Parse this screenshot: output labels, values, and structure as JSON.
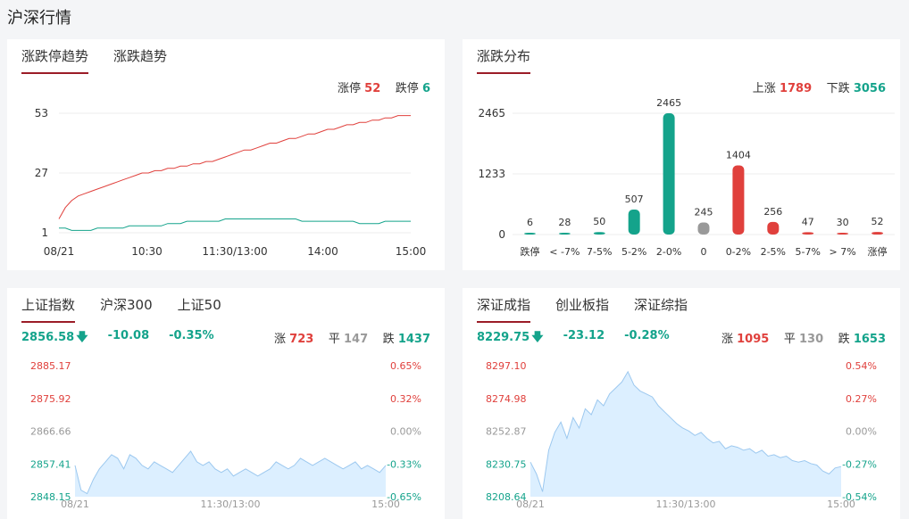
{
  "page_title": "沪深行情",
  "colors": {
    "red": "#e0403c",
    "green": "#14a38b",
    "gray": "#999999",
    "accent": "#9b1c27",
    "area": "#dcefff",
    "area_line": "#9cc8ef"
  },
  "limit_panel": {
    "tabs": [
      {
        "label": "涨跌停趋势",
        "active": true
      },
      {
        "label": "涨跌趋势",
        "active": false
      }
    ],
    "up_label": "涨停",
    "up_value": "52",
    "down_label": "跌停",
    "down_value": "6"
  },
  "dist_panel": {
    "tabs": [
      {
        "label": "涨跌分布",
        "active": true
      }
    ],
    "up_label": "上涨",
    "up_value": "1789",
    "down_label": "下跌",
    "down_value": "3056"
  },
  "sh_panel": {
    "tabs": [
      {
        "label": "上证指数",
        "active": true
      },
      {
        "label": "沪深300",
        "active": false
      },
      {
        "label": "上证50",
        "active": false
      }
    ],
    "price": "2856.58",
    "arrow_icon": "down-arrow-icon",
    "change": "-10.08",
    "percent": "-0.35%",
    "up_label": "涨",
    "up_value": "723",
    "flat_label": "平",
    "flat_value": "147",
    "down_label": "跌",
    "down_value": "1437"
  },
  "sz_panel": {
    "tabs": [
      {
        "label": "深证成指",
        "active": true
      },
      {
        "label": "创业板指",
        "active": false
      },
      {
        "label": "深证综指",
        "active": false
      }
    ],
    "price": "8229.75",
    "arrow_icon": "down-arrow-icon",
    "change": "-23.12",
    "percent": "-0.28%",
    "up_label": "涨",
    "up_value": "1095",
    "flat_label": "平",
    "flat_value": "130",
    "down_label": "跌",
    "down_value": "1653"
  },
  "chart_data": [
    {
      "type": "line",
      "x_ticks": [
        "08/21",
        "10:30",
        "11:30/13:00",
        "14:00",
        "15:00"
      ],
      "y_ticks": [
        "53",
        "27",
        "1"
      ],
      "ylim": [
        1,
        53
      ],
      "series": [
        {
          "name": "涨停",
          "color": "#e0403c",
          "values": [
            7,
            12,
            15,
            17,
            18,
            19,
            20,
            21,
            22,
            23,
            24,
            25,
            26,
            27,
            27,
            28,
            28,
            29,
            29,
            30,
            30,
            31,
            31,
            32,
            32,
            33,
            34,
            35,
            36,
            37,
            37,
            38,
            39,
            40,
            40,
            41,
            42,
            42,
            43,
            44,
            44,
            45,
            46,
            46,
            47,
            48,
            48,
            49,
            49,
            50,
            50,
            51,
            51,
            52,
            52,
            52
          ]
        },
        {
          "name": "跌停",
          "color": "#14a38b",
          "values": [
            3,
            3,
            2,
            2,
            2,
            2,
            3,
            3,
            3,
            3,
            3,
            4,
            4,
            4,
            4,
            4,
            4,
            5,
            5,
            5,
            6,
            6,
            6,
            6,
            6,
            6,
            7,
            7,
            7,
            7,
            7,
            7,
            7,
            7,
            7,
            7,
            7,
            7,
            6,
            6,
            6,
            6,
            6,
            6,
            6,
            6,
            6,
            5,
            5,
            5,
            5,
            6,
            6,
            6,
            6,
            6
          ]
        }
      ]
    },
    {
      "type": "bar",
      "categories": [
        "跌停",
        "< -7%",
        "7-5%",
        "5-2%",
        "2-0%",
        "0",
        "0-2%",
        "2-5%",
        "5-7%",
        "> 7%",
        "涨停"
      ],
      "values": [
        6,
        28,
        50,
        507,
        2465,
        245,
        1404,
        256,
        47,
        30,
        52
      ],
      "colors": [
        "#14a38b",
        "#14a38b",
        "#14a38b",
        "#14a38b",
        "#14a38b",
        "#999999",
        "#e0403c",
        "#e0403c",
        "#e0403c",
        "#e0403c",
        "#e0403c"
      ],
      "y_ticks": [
        "2465",
        "1233",
        "0"
      ],
      "ylim": [
        0,
        2465
      ]
    },
    {
      "type": "area",
      "x_ticks": [
        "08/21",
        "11:30/13:00",
        "15:00"
      ],
      "y_left": [
        "2885.17",
        "2875.92",
        "2866.66",
        "2857.41",
        "2848.15"
      ],
      "y_right": [
        "0.65%",
        "0.32%",
        "0.00%",
        "-0.33%",
        "-0.65%"
      ],
      "ylim": [
        2848.15,
        2885.17
      ],
      "values": [
        2857,
        2850,
        2849,
        2853,
        2856,
        2858,
        2860,
        2859,
        2856,
        2860,
        2859,
        2857,
        2856,
        2858,
        2857,
        2856,
        2855,
        2857,
        2859,
        2861,
        2858,
        2857,
        2858,
        2856,
        2855,
        2856,
        2854,
        2855,
        2856,
        2855,
        2854,
        2855,
        2856,
        2858,
        2857,
        2856,
        2857,
        2859,
        2858,
        2857,
        2858,
        2859,
        2858,
        2857,
        2856,
        2857,
        2858,
        2856,
        2857,
        2856,
        2855,
        2857
      ]
    },
    {
      "type": "area",
      "x_ticks": [
        "08/21",
        "11:30/13:00",
        "15:00"
      ],
      "y_left": [
        "8297.10",
        "8274.98",
        "8252.87",
        "8230.75",
        "8208.64"
      ],
      "y_right": [
        "0.54%",
        "0.27%",
        "0.00%",
        "-0.27%",
        "-0.54%"
      ],
      "ylim": [
        8208.64,
        8297.1
      ],
      "values": [
        8232,
        8224,
        8212,
        8240,
        8252,
        8259,
        8248,
        8262,
        8255,
        8268,
        8264,
        8274,
        8270,
        8278,
        8282,
        8286,
        8293,
        8284,
        8280,
        8278,
        8276,
        8270,
        8266,
        8262,
        8258,
        8255,
        8253,
        8250,
        8252,
        8248,
        8245,
        8246,
        8241,
        8243,
        8242,
        8240,
        8241,
        8238,
        8240,
        8236,
        8237,
        8235,
        8236,
        8233,
        8232,
        8233,
        8231,
        8230,
        8226,
        8224,
        8228,
        8229
      ]
    }
  ]
}
